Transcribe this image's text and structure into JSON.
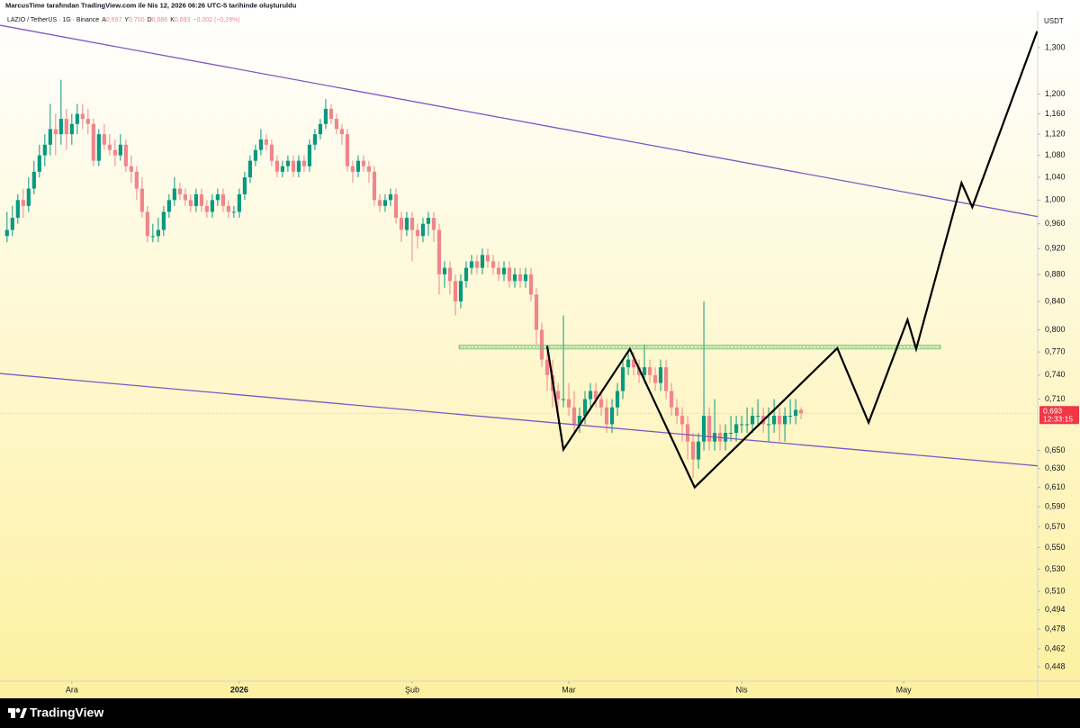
{
  "header": {
    "attribution": "MarcusTime tarafından TradingView.com ile Nis 12, 2026 06:26 UTC-5 tarihinde oluşturuldu",
    "symbol": "LAZIO / TetherUS · 1G · Binance",
    "ohlc": [
      {
        "label": "A",
        "value": "0,697"
      },
      {
        "label": "Y",
        "value": "0,700"
      },
      {
        "label": "D",
        "value": "0,686"
      },
      {
        "label": "K",
        "value": "0,693"
      }
    ],
    "change": "−0,002 (−0,29%)"
  },
  "footer": {
    "brand": "TradingView"
  },
  "chart_data": {
    "type": "candlestick",
    "currency": "USDT",
    "log_scale": true,
    "up_color": "#089981",
    "down_color": "#f0868c",
    "xlim": [
      -1.3,
      190.8
    ],
    "ylim": [
      0.437,
      1.385
    ],
    "xticks": [
      {
        "value": 12,
        "label": "Ara"
      },
      {
        "value": 43,
        "label": "2026"
      },
      {
        "value": 75,
        "label": "Şub"
      },
      {
        "value": 104,
        "label": "Mar"
      },
      {
        "value": 136,
        "label": "Nis"
      },
      {
        "value": 166,
        "label": "May"
      }
    ],
    "yticks": [
      {
        "value": 1.3,
        "label": "1,300"
      },
      {
        "value": 1.2,
        "label": "1,200"
      },
      {
        "value": 1.16,
        "label": "1,160"
      },
      {
        "value": 1.12,
        "label": "1,120"
      },
      {
        "value": 1.08,
        "label": "1,080"
      },
      {
        "value": 1.04,
        "label": "1,040"
      },
      {
        "value": 1.0,
        "label": "1,000"
      },
      {
        "value": 0.96,
        "label": "0,960"
      },
      {
        "value": 0.92,
        "label": "0,920"
      },
      {
        "value": 0.88,
        "label": "0,880"
      },
      {
        "value": 0.84,
        "label": "0,840"
      },
      {
        "value": 0.8,
        "label": "0,800"
      },
      {
        "value": 0.77,
        "label": "0,770"
      },
      {
        "value": 0.74,
        "label": "0,740"
      },
      {
        "value": 0.71,
        "label": "0,710"
      },
      {
        "value": 0.65,
        "label": "0,650"
      },
      {
        "value": 0.63,
        "label": "0,630"
      },
      {
        "value": 0.61,
        "label": "0,610"
      },
      {
        "value": 0.59,
        "label": "0,590"
      },
      {
        "value": 0.57,
        "label": "0,570"
      },
      {
        "value": 0.55,
        "label": "0,550"
      },
      {
        "value": 0.53,
        "label": "0,530"
      },
      {
        "value": 0.51,
        "label": "0,510"
      },
      {
        "value": 0.494,
        "label": "0,494"
      },
      {
        "value": 0.478,
        "label": "0,478"
      },
      {
        "value": 0.462,
        "label": "0,462"
      },
      {
        "value": 0.448,
        "label": "0,448"
      }
    ],
    "last_price": {
      "label": "0,693",
      "countdown": "12:33:15",
      "color": "#f23645"
    },
    "candles": [
      [
        0.94,
        0.98,
        0.93,
        0.95
      ],
      [
        0.95,
        0.99,
        0.94,
        0.97
      ],
      [
        0.97,
        1.01,
        0.96,
        1.0
      ],
      [
        1.0,
        1.02,
        0.97,
        0.99
      ],
      [
        0.99,
        1.04,
        0.98,
        1.02
      ],
      [
        1.02,
        1.07,
        1.01,
        1.05
      ],
      [
        1.05,
        1.1,
        1.04,
        1.08
      ],
      [
        1.08,
        1.12,
        1.06,
        1.1
      ],
      [
        1.1,
        1.18,
        1.08,
        1.13
      ],
      [
        1.13,
        1.16,
        1.08,
        1.12
      ],
      [
        1.12,
        1.23,
        1.1,
        1.15
      ],
      [
        1.15,
        1.17,
        1.09,
        1.12
      ],
      [
        1.12,
        1.16,
        1.1,
        1.14
      ],
      [
        1.14,
        1.18,
        1.12,
        1.16
      ],
      [
        1.16,
        1.18,
        1.13,
        1.15
      ],
      [
        1.15,
        1.17,
        1.12,
        1.14
      ],
      [
        1.14,
        1.15,
        1.06,
        1.07
      ],
      [
        1.07,
        1.13,
        1.06,
        1.12
      ],
      [
        1.12,
        1.14,
        1.09,
        1.1
      ],
      [
        1.1,
        1.12,
        1.08,
        1.09
      ],
      [
        1.09,
        1.11,
        1.06,
        1.08
      ],
      [
        1.08,
        1.12,
        1.07,
        1.1
      ],
      [
        1.1,
        1.11,
        1.05,
        1.06
      ],
      [
        1.06,
        1.08,
        1.03,
        1.05
      ],
      [
        1.05,
        1.06,
        1.0,
        1.02
      ],
      [
        1.02,
        1.04,
        0.97,
        0.98
      ],
      [
        0.98,
        0.99,
        0.93,
        0.94
      ],
      [
        0.94,
        0.96,
        0.93,
        0.94
      ],
      [
        0.94,
        0.97,
        0.93,
        0.95
      ],
      [
        0.95,
        0.99,
        0.94,
        0.98
      ],
      [
        0.98,
        1.01,
        0.97,
        1.0
      ],
      [
        1.0,
        1.04,
        0.99,
        1.02
      ],
      [
        1.02,
        1.03,
        1.0,
        1.01
      ],
      [
        1.01,
        1.02,
        0.99,
        1.0
      ],
      [
        1.0,
        1.01,
        0.98,
        0.99
      ],
      [
        0.99,
        1.02,
        0.98,
        1.01
      ],
      [
        1.01,
        1.02,
        0.98,
        0.99
      ],
      [
        0.99,
        1.0,
        0.97,
        0.98
      ],
      [
        0.98,
        1.01,
        0.97,
        1.0
      ],
      [
        1.0,
        1.02,
        0.99,
        1.01
      ],
      [
        1.01,
        1.02,
        0.98,
        0.99
      ],
      [
        0.99,
        1.0,
        0.97,
        0.98
      ],
      [
        0.98,
        0.99,
        0.97,
        0.98
      ],
      [
        0.98,
        1.02,
        0.97,
        1.01
      ],
      [
        1.01,
        1.05,
        1.0,
        1.04
      ],
      [
        1.04,
        1.08,
        1.03,
        1.07
      ],
      [
        1.07,
        1.1,
        1.06,
        1.09
      ],
      [
        1.09,
        1.13,
        1.08,
        1.11
      ],
      [
        1.11,
        1.12,
        1.09,
        1.1
      ],
      [
        1.1,
        1.11,
        1.06,
        1.07
      ],
      [
        1.07,
        1.08,
        1.04,
        1.05
      ],
      [
        1.05,
        1.07,
        1.04,
        1.06
      ],
      [
        1.06,
        1.08,
        1.05,
        1.07
      ],
      [
        1.07,
        1.08,
        1.04,
        1.05
      ],
      [
        1.05,
        1.08,
        1.04,
        1.07
      ],
      [
        1.07,
        1.08,
        1.05,
        1.06
      ],
      [
        1.06,
        1.11,
        1.05,
        1.1
      ],
      [
        1.1,
        1.13,
        1.09,
        1.12
      ],
      [
        1.12,
        1.15,
        1.11,
        1.14
      ],
      [
        1.14,
        1.19,
        1.13,
        1.17
      ],
      [
        1.17,
        1.18,
        1.14,
        1.15
      ],
      [
        1.15,
        1.16,
        1.12,
        1.13
      ],
      [
        1.13,
        1.14,
        1.1,
        1.12
      ],
      [
        1.12,
        1.13,
        1.05,
        1.06
      ],
      [
        1.06,
        1.07,
        1.03,
        1.05
      ],
      [
        1.05,
        1.08,
        1.04,
        1.07
      ],
      [
        1.07,
        1.08,
        1.05,
        1.06
      ],
      [
        1.06,
        1.07,
        1.03,
        1.05
      ],
      [
        1.05,
        1.06,
        0.99,
        1.0
      ],
      [
        1.0,
        1.01,
        0.98,
        0.99
      ],
      [
        0.99,
        1.01,
        0.98,
        1.0
      ],
      [
        1.0,
        1.02,
        0.99,
        1.01
      ],
      [
        1.01,
        1.02,
        0.96,
        0.97
      ],
      [
        0.97,
        0.98,
        0.93,
        0.95
      ],
      [
        0.95,
        0.98,
        0.94,
        0.97
      ],
      [
        0.97,
        0.98,
        0.9,
        0.95
      ],
      [
        0.95,
        0.96,
        0.92,
        0.94
      ],
      [
        0.94,
        0.97,
        0.93,
        0.96
      ],
      [
        0.96,
        0.98,
        0.94,
        0.97
      ],
      [
        0.97,
        0.98,
        0.93,
        0.95
      ],
      [
        0.95,
        0.96,
        0.85,
        0.88
      ],
      [
        0.88,
        0.9,
        0.86,
        0.89
      ],
      [
        0.89,
        0.9,
        0.85,
        0.87
      ],
      [
        0.87,
        0.88,
        0.82,
        0.84
      ],
      [
        0.84,
        0.88,
        0.83,
        0.87
      ],
      [
        0.87,
        0.9,
        0.86,
        0.89
      ],
      [
        0.89,
        0.91,
        0.88,
        0.9
      ],
      [
        0.9,
        0.91,
        0.88,
        0.89
      ],
      [
        0.89,
        0.92,
        0.88,
        0.91
      ],
      [
        0.91,
        0.92,
        0.89,
        0.9
      ],
      [
        0.9,
        0.91,
        0.88,
        0.89
      ],
      [
        0.89,
        0.9,
        0.87,
        0.88
      ],
      [
        0.88,
        0.9,
        0.87,
        0.89
      ],
      [
        0.89,
        0.9,
        0.86,
        0.87
      ],
      [
        0.87,
        0.89,
        0.86,
        0.88
      ],
      [
        0.88,
        0.89,
        0.86,
        0.87
      ],
      [
        0.87,
        0.89,
        0.86,
        0.88
      ],
      [
        0.88,
        0.89,
        0.84,
        0.85
      ],
      [
        0.85,
        0.86,
        0.78,
        0.8
      ],
      [
        0.8,
        0.81,
        0.75,
        0.76
      ],
      [
        0.76,
        0.78,
        0.72,
        0.74
      ],
      [
        0.74,
        0.76,
        0.7,
        0.72
      ],
      [
        0.72,
        0.73,
        0.69,
        0.71
      ],
      [
        0.71,
        0.82,
        0.7,
        0.71
      ],
      [
        0.71,
        0.73,
        0.69,
        0.7
      ],
      [
        0.7,
        0.72,
        0.67,
        0.68
      ],
      [
        0.68,
        0.7,
        0.67,
        0.69
      ],
      [
        0.69,
        0.72,
        0.68,
        0.71
      ],
      [
        0.71,
        0.73,
        0.7,
        0.72
      ],
      [
        0.72,
        0.73,
        0.7,
        0.71
      ],
      [
        0.71,
        0.72,
        0.69,
        0.7
      ],
      [
        0.7,
        0.71,
        0.67,
        0.68
      ],
      [
        0.68,
        0.71,
        0.67,
        0.7
      ],
      [
        0.7,
        0.73,
        0.69,
        0.72
      ],
      [
        0.72,
        0.76,
        0.71,
        0.75
      ],
      [
        0.75,
        0.77,
        0.74,
        0.76
      ],
      [
        0.76,
        0.77,
        0.74,
        0.75
      ],
      [
        0.75,
        0.76,
        0.73,
        0.74
      ],
      [
        0.74,
        0.78,
        0.73,
        0.75
      ],
      [
        0.75,
        0.76,
        0.73,
        0.74
      ],
      [
        0.74,
        0.75,
        0.72,
        0.73
      ],
      [
        0.73,
        0.76,
        0.72,
        0.75
      ],
      [
        0.75,
        0.76,
        0.71,
        0.72
      ],
      [
        0.72,
        0.73,
        0.69,
        0.7
      ],
      [
        0.7,
        0.71,
        0.68,
        0.69
      ],
      [
        0.69,
        0.7,
        0.66,
        0.68
      ],
      [
        0.68,
        0.69,
        0.64,
        0.66
      ],
      [
        0.66,
        0.67,
        0.62,
        0.64
      ],
      [
        0.64,
        0.67,
        0.63,
        0.66
      ],
      [
        0.66,
        0.84,
        0.65,
        0.69
      ],
      [
        0.69,
        0.7,
        0.65,
        0.66
      ],
      [
        0.66,
        0.71,
        0.65,
        0.67
      ],
      [
        0.67,
        0.68,
        0.65,
        0.66
      ],
      [
        0.66,
        0.68,
        0.65,
        0.67
      ],
      [
        0.67,
        0.69,
        0.66,
        0.67
      ],
      [
        0.67,
        0.69,
        0.66,
        0.68
      ],
      [
        0.68,
        0.69,
        0.67,
        0.68
      ],
      [
        0.68,
        0.7,
        0.67,
        0.68
      ],
      [
        0.68,
        0.7,
        0.67,
        0.69
      ],
      [
        0.69,
        0.71,
        0.68,
        0.69
      ],
      [
        0.69,
        0.7,
        0.67,
        0.68
      ],
      [
        0.68,
        0.7,
        0.66,
        0.68
      ],
      [
        0.68,
        0.71,
        0.67,
        0.69
      ],
      [
        0.69,
        0.7,
        0.66,
        0.68
      ],
      [
        0.68,
        0.7,
        0.66,
        0.69
      ],
      [
        0.69,
        0.71,
        0.68,
        0.69
      ],
      [
        0.69,
        0.71,
        0.68,
        0.697
      ],
      [
        0.697,
        0.7,
        0.686,
        0.693
      ]
    ],
    "drawings": [
      {
        "kind": "trendline",
        "color": "#7e57c2",
        "x": [
          -1.3,
          190.8
        ],
        "y": [
          1.351,
          0.972
        ]
      },
      {
        "kind": "trendline",
        "color": "#7e57c2",
        "x": [
          -1.3,
          190.8
        ],
        "y": [
          0.742,
          0.633
        ]
      },
      {
        "kind": "zone",
        "color": "#66bb6a",
        "x": [
          83.7,
          172.8
        ],
        "y": [
          0.779,
          0.774
        ]
      },
      {
        "kind": "path",
        "color": "#000000",
        "x": [
          100.0,
          103.0,
          115.3,
          127.3,
          153.7,
          159.5,
          166.7,
          168.3,
          176.7,
          178.7,
          190.7
        ],
        "y": [
          0.778,
          0.651,
          0.774,
          0.61,
          0.775,
          0.682,
          0.814,
          0.774,
          1.03,
          0.988,
          1.337
        ]
      }
    ]
  }
}
